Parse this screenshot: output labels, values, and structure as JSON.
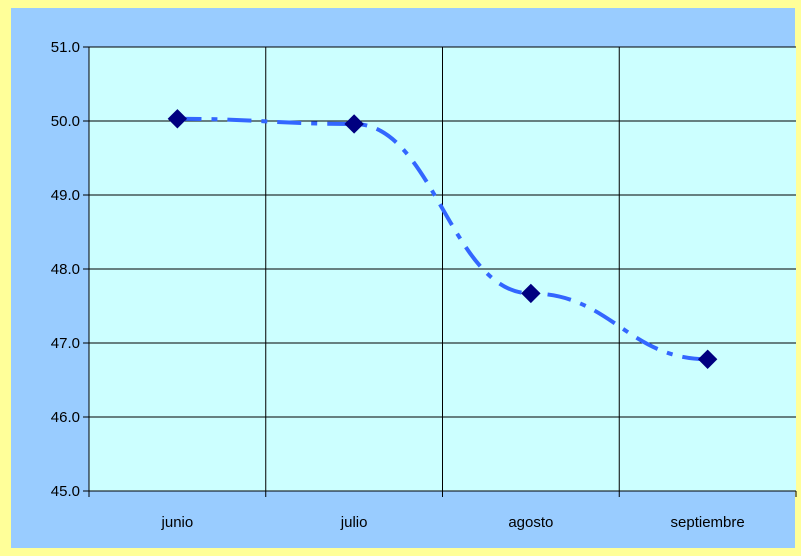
{
  "chart_data": {
    "type": "line",
    "title": "",
    "xlabel": "",
    "ylabel": "",
    "categories": [
      "junio",
      "julio",
      "agosto",
      "septiembre"
    ],
    "series": [
      {
        "values": [
          50.03,
          49.96,
          47.67,
          46.78
        ],
        "line_color": "#3366ff",
        "line_style": "dash-dot",
        "marker": "diamond",
        "marker_color": "#000080"
      }
    ],
    "ylim": [
      45.0,
      51.0
    ],
    "yticks": [
      "45.0",
      "46.0",
      "47.0",
      "48.0",
      "49.0",
      "50.0",
      "51.0"
    ],
    "grid": true,
    "legend": "none",
    "colors": {
      "outer_background": "#ffff99",
      "chart_area_background": "#99ccff",
      "plot_area_background": "#ccffff",
      "axis": "#000000",
      "gridline": "#000000"
    }
  }
}
